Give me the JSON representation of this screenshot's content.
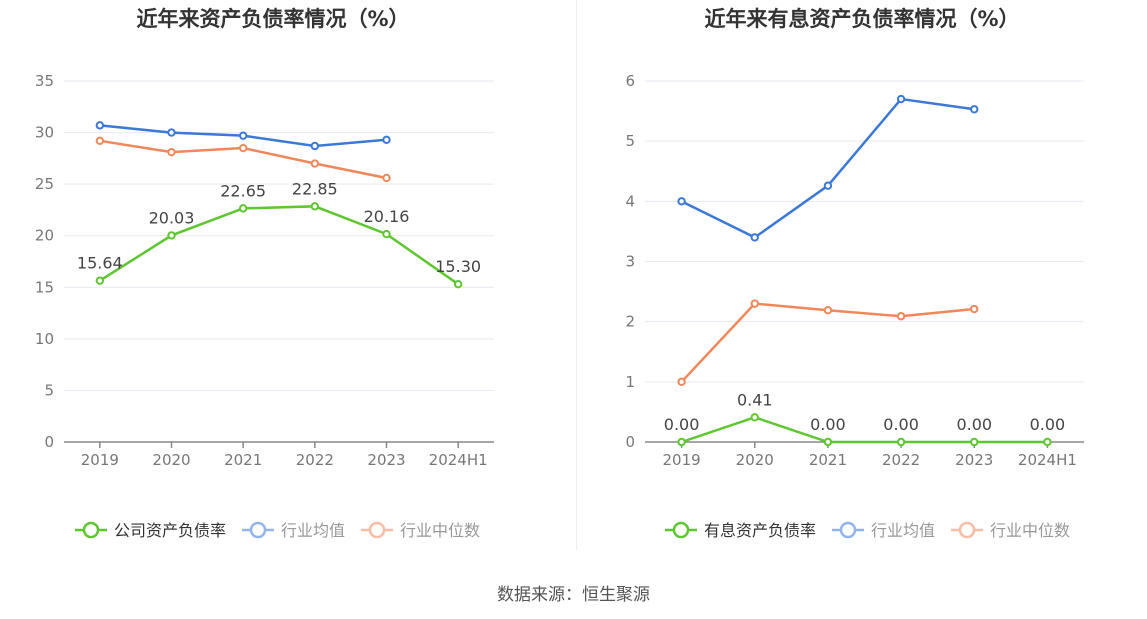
{
  "footer": {
    "source": "数据来源：恒生聚源"
  },
  "chart_data": [
    {
      "type": "line",
      "title": "近年来资产负债率情况（%）",
      "categories": [
        "2019",
        "2020",
        "2021",
        "2022",
        "2023",
        "2024H1"
      ],
      "ylim": [
        0,
        35
      ],
      "yticks": [
        0,
        5,
        10,
        15,
        20,
        25,
        30,
        35
      ],
      "grid": true,
      "legend_position": "bottom",
      "series": [
        {
          "name": "公司资产负债率",
          "color": "#5ec62f",
          "show_labels": true,
          "values": [
            15.64,
            20.03,
            22.65,
            22.85,
            20.16,
            15.3
          ],
          "labels": [
            "15.64",
            "20.03",
            "22.65",
            "22.85",
            "20.16",
            "15.30"
          ]
        },
        {
          "name": "行业均值",
          "color": "#3b78d8",
          "show_labels": false,
          "values": [
            30.7,
            30.0,
            29.7,
            28.7,
            29.3,
            null
          ]
        },
        {
          "name": "行业中位数",
          "color": "#f0875a",
          "show_labels": false,
          "values": [
            29.2,
            28.1,
            28.5,
            27.0,
            25.6,
            null
          ]
        }
      ]
    },
    {
      "type": "line",
      "title": "近年来有息资产负债率情况（%）",
      "categories": [
        "2019",
        "2020",
        "2021",
        "2022",
        "2023",
        "2024H1"
      ],
      "ylim": [
        0,
        6
      ],
      "yticks": [
        0,
        1,
        2,
        3,
        4,
        5,
        6
      ],
      "grid": true,
      "legend_position": "bottom",
      "series": [
        {
          "name": "有息资产负债率",
          "color": "#5ec62f",
          "show_labels": true,
          "values": [
            0.0,
            0.41,
            0.0,
            0.0,
            0.0,
            0.0
          ],
          "labels": [
            "0.00",
            "0.41",
            "0.00",
            "0.00",
            "0.00",
            "0.00"
          ]
        },
        {
          "name": "行业均值",
          "color": "#3b78d8",
          "show_labels": false,
          "values": [
            4.0,
            3.4,
            4.26,
            5.7,
            5.53,
            null
          ]
        },
        {
          "name": "行业中位数",
          "color": "#f0875a",
          "show_labels": false,
          "values": [
            1.0,
            2.3,
            2.19,
            2.09,
            2.21,
            null
          ]
        }
      ]
    }
  ]
}
